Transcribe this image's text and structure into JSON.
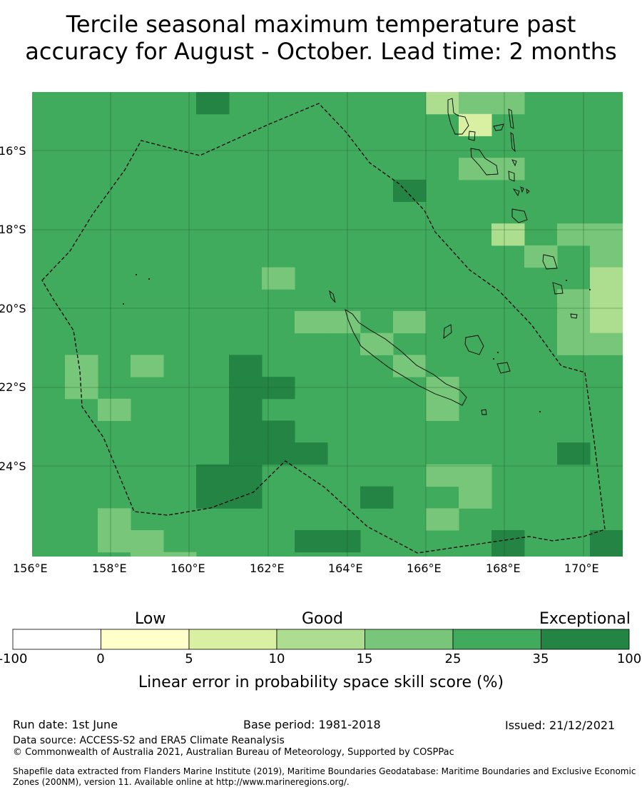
{
  "title_line1": "Tercile seasonal maximum temperature past",
  "title_line2": "accuracy for August - October. Lead time: 2 months",
  "map": {
    "lat_labels": [
      "16°S",
      "18°S",
      "20°S",
      "22°S",
      "24°S"
    ],
    "lon_labels": [
      "156°E",
      "158°E",
      "160°E",
      "162°E",
      "164°E",
      "166°E",
      "168°E",
      "170°E"
    ],
    "colors": {
      "c1": "#ffffcc",
      "c2": "#d9f0a3",
      "c3": "#addd8e",
      "c4": "#78c679",
      "c5": "#41ab5d",
      "c6": "#238443"
    },
    "background_class": "c5"
  },
  "colorbar": {
    "categories": [
      "Low",
      "Good",
      "Exceptional"
    ],
    "ticks": [
      "-100",
      "0",
      "5",
      "10",
      "15",
      "25",
      "35",
      "100"
    ],
    "label": "Linear error in probability space skill score (%)",
    "colors": [
      "#ffffff",
      "#ffffcc",
      "#d9f0a3",
      "#addd8e",
      "#78c679",
      "#41ab5d",
      "#238443"
    ]
  },
  "footer": {
    "run_date": "Run date: 1st June",
    "base_period": "Base period: 1981-2018",
    "issued": "Issued: 21/12/2021",
    "data_source": "Data source: ACCESS-S2 and ERA5 Climate Reanalysis",
    "copyright": "© Commonwealth of Australia 2021, Australian Bureau of Meteorology, Supported by COSPPac",
    "shapefile_line1": "Shapefile data extracted from Flanders Marine Institute (2019), Maritime Boundaries Geodatabase: Maritime Boundaries and Exclusive Economic",
    "shapefile_line2": "Zones (200NM), version 11. Available online at http://www.marineregions.org/."
  }
}
